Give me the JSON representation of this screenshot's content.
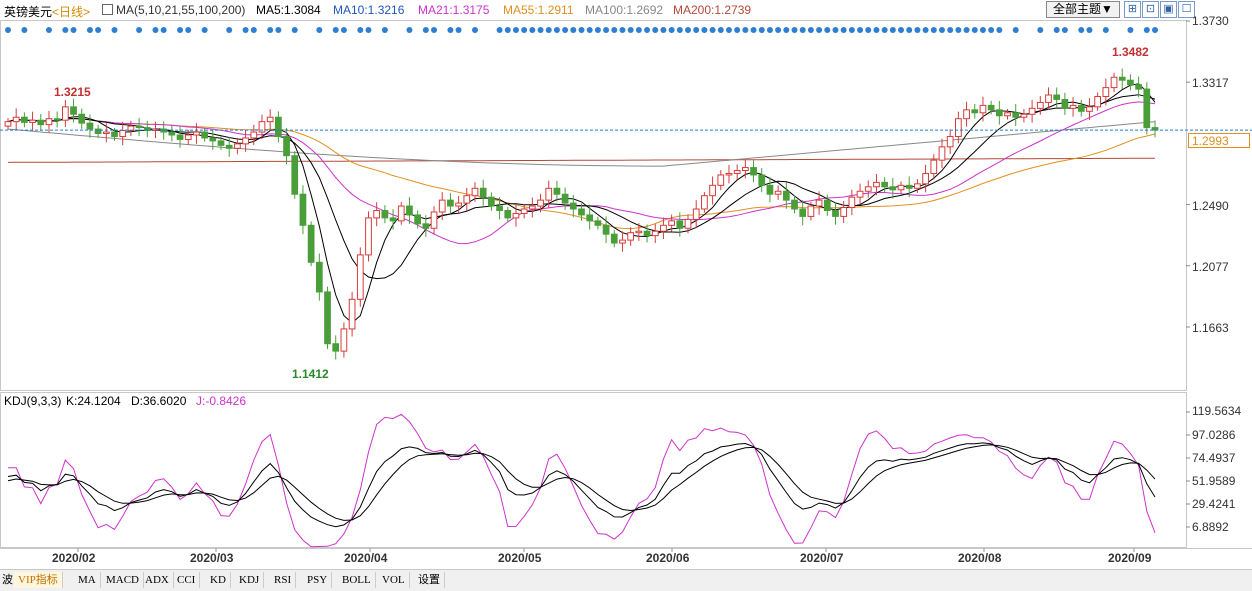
{
  "header": {
    "symbol": "英镑美元",
    "period": "<日线>",
    "ma_params": "MA(5,10,21,55,100,200)",
    "ma5": "MA5:1.3084",
    "ma10": "MA10:1.3216",
    "ma21": "MA21:1.3175",
    "ma55": "MA55:1.2911",
    "ma100": "MA100:1.2692",
    "ma200": "MA200:1.2739",
    "theme_button": "全部主题▼"
  },
  "colors": {
    "up": "#d63b3b",
    "down": "#4a9e3a",
    "ma5": "#000000",
    "ma10": "#000000",
    "ma21": "#cc33cc",
    "ma55": "#e09020",
    "ma100": "#888888",
    "ma200": "#b24a3a",
    "kdj_k": "#000000",
    "kdj_d": "#000000",
    "kdj_j": "#cc33cc",
    "current": "#1e7fd6"
  },
  "price_axis": [
    "1.3730",
    "1.3317",
    "1.2490",
    "1.2077",
    "1.1663"
  ],
  "current_price": "1.2993",
  "kdj": {
    "label": "KDJ(9,3,3)",
    "k": "K:24.1204",
    "d": "D:36.6020",
    "j": "J:-0.8426",
    "axis": [
      "119.5634",
      "97.0286",
      "74.4937",
      "51.9589",
      "29.4241",
      "6.8892"
    ]
  },
  "dates": [
    "2020/02",
    "2020/03",
    "2020/04",
    "2020/05",
    "2020/06",
    "2020/07",
    "2020/08",
    "2020/09"
  ],
  "tabs": [
    "波",
    "VIP指标",
    "MA",
    "MACD",
    "ADX",
    "CCI",
    "KD",
    "KDJ",
    "RSI",
    "PSY",
    "BOLL",
    "VOL",
    "设置"
  ],
  "chart_data": {
    "type": "candlestick",
    "title": "英镑美元 <日线>",
    "ylim": [
      1.13,
      1.375
    ],
    "yticks": [
      1.373,
      1.3317,
      1.249,
      1.2077,
      1.1663
    ],
    "high_annotation": {
      "label": "1.3482",
      "value": 1.3482
    },
    "low_annotation": {
      "label": "1.1412",
      "value": 1.1412
    },
    "left_annotation": {
      "label": "1.3215",
      "value": 1.3215
    },
    "closes": [
      1.305,
      1.308,
      1.3045,
      1.306,
      1.303,
      1.307,
      1.306,
      1.315,
      1.31,
      1.304,
      1.3,
      1.297,
      1.298,
      1.295,
      1.299,
      1.302,
      1.301,
      1.299,
      1.3,
      1.298,
      1.296,
      1.293,
      1.296,
      1.298,
      1.294,
      1.292,
      1.289,
      1.287,
      1.29,
      1.294,
      1.298,
      1.305,
      1.308,
      1.295,
      1.282,
      1.256,
      1.235,
      1.21,
      1.19,
      1.155,
      1.15,
      1.165,
      1.185,
      1.215,
      1.24,
      1.245,
      1.24,
      1.238,
      1.248,
      1.242,
      1.236,
      1.233,
      1.244,
      1.252,
      1.248,
      1.25,
      1.255,
      1.26,
      1.254,
      1.248,
      1.245,
      1.24,
      1.243,
      1.246,
      1.248,
      1.252,
      1.26,
      1.256,
      1.25,
      1.246,
      1.242,
      1.238,
      1.235,
      1.229,
      1.223,
      1.225,
      1.23,
      1.231,
      1.228,
      1.231,
      1.235,
      1.238,
      1.233,
      1.239,
      1.246,
      1.255,
      1.262,
      1.269,
      1.27,
      1.272,
      1.274,
      1.269,
      1.262,
      1.256,
      1.258,
      1.252,
      1.246,
      1.241,
      1.248,
      1.252,
      1.245,
      1.241,
      1.247,
      1.254,
      1.258,
      1.261,
      1.264,
      1.261,
      1.259,
      1.262,
      1.26,
      1.263,
      1.27,
      1.279,
      1.288,
      1.295,
      1.307,
      1.313,
      1.311,
      1.316,
      1.313,
      1.309,
      1.311,
      1.308,
      1.31,
      1.314,
      1.318,
      1.323,
      1.32,
      1.314,
      1.316,
      1.312,
      1.315,
      1.322,
      1.328,
      1.335,
      1.333,
      1.33,
      1.327,
      1.301,
      1.2993
    ]
  }
}
